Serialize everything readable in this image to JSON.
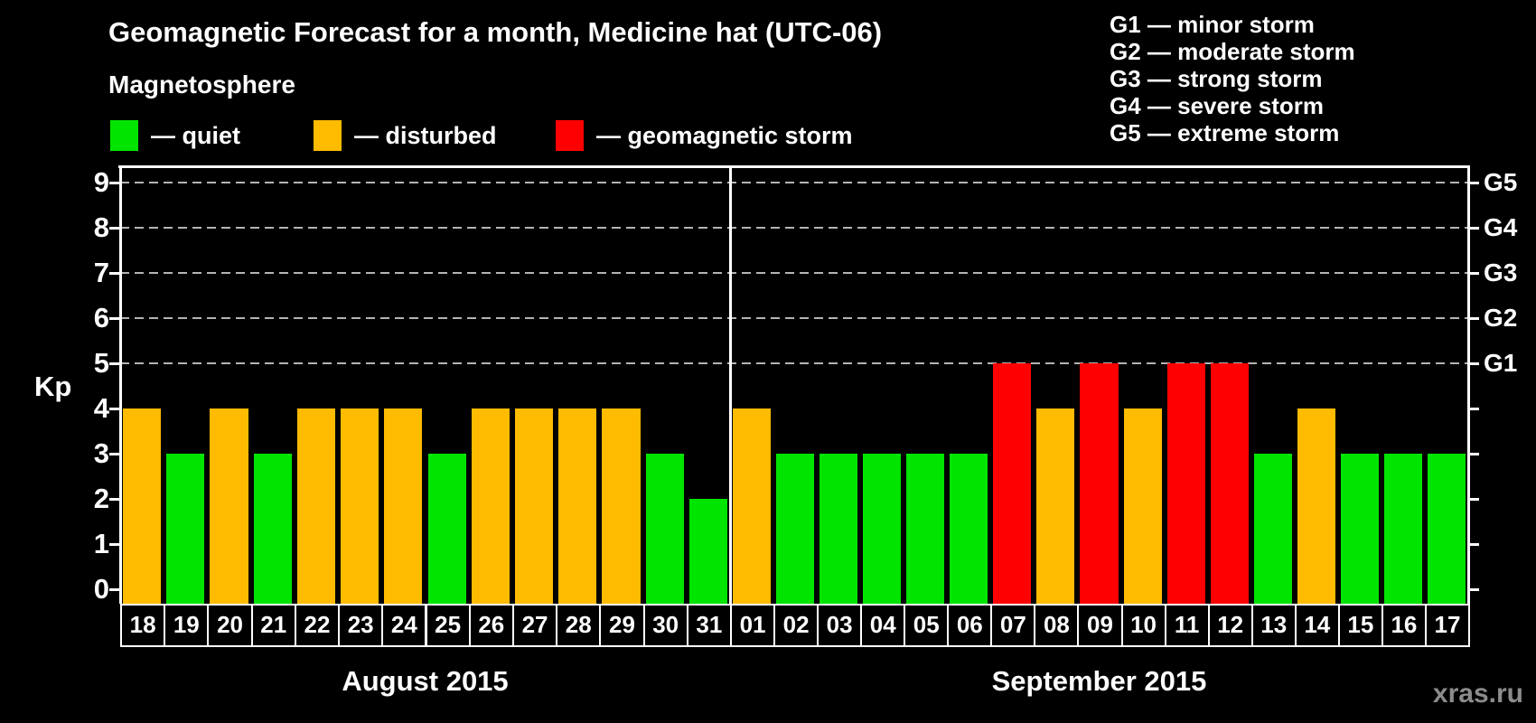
{
  "header": {
    "title": "Geomagnetic Forecast for a month, Medicine hat (UTC-06)",
    "legend_title": "Magnetosphere",
    "legend": [
      {
        "key": "quiet",
        "label": "— quiet",
        "color": "#00E400"
      },
      {
        "key": "disturbed",
        "label": "— disturbed",
        "color": "#FFBB00"
      },
      {
        "key": "storm",
        "label": "— geomagnetic storm",
        "color": "#FF0000"
      }
    ],
    "g_scale_legend": [
      "G1 — minor storm",
      "G2 — moderate storm",
      "G3 — strong storm",
      "G4 — severe storm",
      "G5 — extreme storm"
    ]
  },
  "chart_data": {
    "type": "bar",
    "title": "Geomagnetic Forecast for a month, Medicine hat (UTC-06)",
    "ylabel": "Kp",
    "ylim": [
      0,
      9
    ],
    "yticks": [
      0,
      1,
      2,
      3,
      4,
      5,
      6,
      7,
      8,
      9
    ],
    "gridlines_at": [
      5,
      6,
      7,
      8,
      9
    ],
    "grid_style": "dashed gray horizontal lines at G-storm levels only",
    "right_axis": [
      {
        "kp": 5,
        "label": "G1"
      },
      {
        "kp": 6,
        "label": "G2"
      },
      {
        "kp": 7,
        "label": "G3"
      },
      {
        "kp": 8,
        "label": "G4"
      },
      {
        "kp": 9,
        "label": "G5"
      }
    ],
    "status_colors": {
      "quiet": "#00E400",
      "disturbed": "#FFBB00",
      "storm": "#FF0000"
    },
    "months": [
      {
        "label": "August 2015",
        "days": [
          {
            "day": "18",
            "kp": 4,
            "status": "disturbed"
          },
          {
            "day": "19",
            "kp": 3,
            "status": "quiet"
          },
          {
            "day": "20",
            "kp": 4,
            "status": "disturbed"
          },
          {
            "day": "21",
            "kp": 3,
            "status": "quiet"
          },
          {
            "day": "22",
            "kp": 4,
            "status": "disturbed"
          },
          {
            "day": "23",
            "kp": 4,
            "status": "disturbed"
          },
          {
            "day": "24",
            "kp": 4,
            "status": "disturbed"
          },
          {
            "day": "25",
            "kp": 3,
            "status": "quiet"
          },
          {
            "day": "26",
            "kp": 4,
            "status": "disturbed"
          },
          {
            "day": "27",
            "kp": 4,
            "status": "disturbed"
          },
          {
            "day": "28",
            "kp": 4,
            "status": "disturbed"
          },
          {
            "day": "29",
            "kp": 4,
            "status": "disturbed"
          },
          {
            "day": "30",
            "kp": 3,
            "status": "quiet"
          },
          {
            "day": "31",
            "kp": 2,
            "status": "quiet"
          }
        ]
      },
      {
        "label": "September 2015",
        "days": [
          {
            "day": "01",
            "kp": 4,
            "status": "disturbed"
          },
          {
            "day": "02",
            "kp": 3,
            "status": "quiet"
          },
          {
            "day": "03",
            "kp": 3,
            "status": "quiet"
          },
          {
            "day": "04",
            "kp": 3,
            "status": "quiet"
          },
          {
            "day": "05",
            "kp": 3,
            "status": "quiet"
          },
          {
            "day": "06",
            "kp": 3,
            "status": "quiet"
          },
          {
            "day": "07",
            "kp": 5,
            "status": "storm"
          },
          {
            "day": "08",
            "kp": 4,
            "status": "disturbed"
          },
          {
            "day": "09",
            "kp": 5,
            "status": "storm"
          },
          {
            "day": "10",
            "kp": 4,
            "status": "disturbed"
          },
          {
            "day": "11",
            "kp": 5,
            "status": "storm"
          },
          {
            "day": "12",
            "kp": 5,
            "status": "storm"
          },
          {
            "day": "13",
            "kp": 3,
            "status": "quiet"
          },
          {
            "day": "14",
            "kp": 4,
            "status": "disturbed"
          },
          {
            "day": "15",
            "kp": 3,
            "status": "quiet"
          },
          {
            "day": "16",
            "kp": 3,
            "status": "quiet"
          },
          {
            "day": "17",
            "kp": 3,
            "status": "quiet"
          }
        ]
      }
    ]
  },
  "watermark": "xras.ru"
}
